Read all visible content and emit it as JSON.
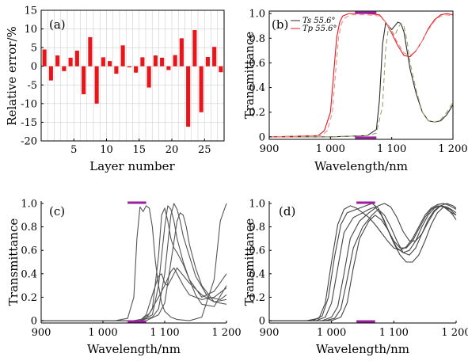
{
  "chart_data": [
    {
      "panel": "(a)",
      "type": "bar",
      "xlabel": "Layer number",
      "ylabel": "Relative error/%",
      "xlim": [
        0,
        28
      ],
      "ylim": [
        -20,
        15
      ],
      "xticks": [
        5,
        10,
        15,
        20,
        25
      ],
      "yticks": [
        -20,
        -15,
        -10,
        -5,
        0,
        5,
        10,
        15
      ],
      "grid": true,
      "bar_color": "#e8151b",
      "categories": [
        1,
        2,
        3,
        4,
        5,
        6,
        7,
        8,
        9,
        10,
        11,
        12,
        13,
        14,
        15,
        16,
        17,
        18,
        19,
        20,
        21,
        22,
        23,
        24,
        25,
        26,
        27,
        28
      ],
      "values": [
        4.5,
        -3.8,
        2.9,
        -1.3,
        2.3,
        4.2,
        -7.5,
        7.8,
        -10,
        2.4,
        1.4,
        -2.0,
        5.6,
        -0.3,
        -1.7,
        2.4,
        -5.7,
        2.9,
        2.3,
        -1.0,
        3.0,
        7.5,
        -16.2,
        9.7,
        -12.3,
        2.5,
        5.2,
        -1.6
      ]
    },
    {
      "panel": "(b)",
      "type": "line",
      "xlabel": "Wavelength/nm",
      "ylabel": "Transmittance",
      "xlim": [
        900,
        1200
      ],
      "ylim": [
        -0.02,
        1.02
      ],
      "xticks": [
        900,
        1000,
        1100,
        1200
      ],
      "xtick_labels": [
        "900",
        "1 000",
        "1 100",
        "1 200"
      ],
      "yticks": [
        0,
        0.2,
        0.4,
        0.6,
        0.8,
        1.0
      ],
      "ytick_labels": [
        "0",
        "0.2",
        "0.4",
        "0.6",
        "0.8",
        "1.0"
      ],
      "legend": [
        {
          "label": "Ts 55.6°",
          "color": "#2b2b2b"
        },
        {
          "label": "Tp 55.6°",
          "color": "#e8151b"
        }
      ],
      "band_color": "#9b1fa0",
      "band_top": [
        1040,
        1075
      ],
      "band_bottom": [
        1040,
        1075
      ],
      "series": [
        {
          "name": "Ts 55.6°",
          "color": "#2b2b2b",
          "dash": "",
          "x": [
            900,
            1000,
            1060,
            1075,
            1080,
            1085,
            1090,
            1095,
            1100,
            1105,
            1110,
            1115,
            1120,
            1125,
            1130,
            1140,
            1150,
            1160,
            1170,
            1180,
            1190,
            1200
          ],
          "y": [
            0.0,
            0.0,
            0.01,
            0.06,
            0.3,
            0.75,
            0.92,
            0.9,
            0.87,
            0.9,
            0.93,
            0.92,
            0.85,
            0.7,
            0.55,
            0.35,
            0.2,
            0.13,
            0.12,
            0.13,
            0.18,
            0.26
          ]
        },
        {
          "name": "Ts 55.6° (dashed)",
          "color": "#9ea068",
          "dash": "6,4",
          "x": [
            900,
            1000,
            1060,
            1075,
            1085,
            1090,
            1095,
            1100,
            1105,
            1110,
            1115,
            1120,
            1125,
            1130,
            1140,
            1150,
            1160,
            1170,
            1180,
            1190,
            1200
          ],
          "y": [
            0.0,
            0.0,
            0.01,
            0.03,
            0.25,
            0.7,
            0.9,
            0.86,
            0.82,
            0.88,
            0.92,
            0.9,
            0.78,
            0.6,
            0.38,
            0.2,
            0.13,
            0.12,
            0.14,
            0.2,
            0.28
          ]
        },
        {
          "name": "Tp 55.6°",
          "color": "#e8151b",
          "dash": "",
          "x": [
            900,
            980,
            990,
            1000,
            1005,
            1010,
            1015,
            1020,
            1030,
            1060,
            1080,
            1090,
            1100,
            1110,
            1120,
            1130,
            1140,
            1150,
            1160,
            1170,
            1180,
            1190,
            1200
          ],
          "y": [
            0.0,
            0.01,
            0.05,
            0.2,
            0.5,
            0.8,
            0.93,
            0.98,
            1.0,
            1.0,
            0.99,
            0.93,
            0.84,
            0.74,
            0.66,
            0.65,
            0.7,
            0.78,
            0.88,
            0.95,
            0.99,
            1.0,
            0.99
          ]
        },
        {
          "name": "Tp 55.6° (dashed)",
          "color": "#f08a8c",
          "dash": "6,4",
          "x": [
            900,
            985,
            995,
            1003,
            1008,
            1013,
            1018,
            1025,
            1035,
            1060,
            1080,
            1090,
            1100,
            1110,
            1120,
            1130,
            1140,
            1150,
            1160,
            1170,
            1180,
            1190,
            1200
          ],
          "y": [
            0.0,
            0.01,
            0.05,
            0.2,
            0.5,
            0.8,
            0.92,
            0.97,
            0.99,
            0.99,
            0.98,
            0.93,
            0.85,
            0.76,
            0.68,
            0.66,
            0.7,
            0.78,
            0.87,
            0.94,
            0.98,
            0.99,
            0.98
          ]
        }
      ]
    },
    {
      "panel": "(c)",
      "type": "line",
      "xlabel": "Wavelength/nm",
      "ylabel": "Transmittance",
      "xlim": [
        900,
        1200
      ],
      "ylim": [
        -0.02,
        1.02
      ],
      "xticks": [
        900,
        1000,
        1100,
        1200
      ],
      "xtick_labels": [
        "900",
        "1 000",
        "1 100",
        "1 200"
      ],
      "yticks": [
        0,
        0.2,
        0.4,
        0.6,
        0.8,
        1.0
      ],
      "ytick_labels": [
        "0",
        "0.2",
        "0.4",
        "0.6",
        "0.8",
        "1.0"
      ],
      "band_color": "#9b1fa0",
      "band_top": [
        1040,
        1070
      ],
      "band_bottom": [
        1040,
        1070
      ],
      "series": [
        {
          "color": "#555555",
          "x": [
            900,
            1020,
            1040,
            1050,
            1055,
            1060,
            1065,
            1070,
            1075,
            1080,
            1085,
            1090,
            1095,
            1100,
            1110,
            1120,
            1140,
            1160,
            1180,
            1190,
            1200
          ],
          "y": [
            0,
            0,
            0.02,
            0.2,
            0.7,
            0.97,
            0.93,
            0.98,
            0.96,
            0.8,
            0.5,
            0.3,
            0.15,
            0.08,
            0.03,
            0.01,
            0.0,
            0.03,
            0.35,
            0.85,
            1.0
          ]
        },
        {
          "color": "#555555",
          "x": [
            900,
            1050,
            1070,
            1080,
            1090,
            1095,
            1100,
            1105,
            1110,
            1115,
            1120,
            1130,
            1140,
            1150,
            1160,
            1180,
            1200
          ],
          "y": [
            0,
            0,
            0.02,
            0.1,
            0.55,
            0.9,
            0.96,
            0.85,
            0.7,
            0.62,
            0.58,
            0.48,
            0.35,
            0.22,
            0.14,
            0.12,
            0.3
          ]
        },
        {
          "color": "#555555",
          "x": [
            900,
            1060,
            1080,
            1090,
            1100,
            1105,
            1110,
            1115,
            1120,
            1130,
            1140,
            1160,
            1180,
            1200
          ],
          "y": [
            0,
            0,
            0.05,
            0.3,
            0.8,
            0.98,
            0.95,
            0.85,
            0.7,
            0.5,
            0.35,
            0.2,
            0.25,
            0.4
          ]
        },
        {
          "color": "#555555",
          "x": [
            900,
            1060,
            1080,
            1090,
            1100,
            1110,
            1115,
            1120,
            1125,
            1130,
            1140,
            1150,
            1170,
            1190,
            1200
          ],
          "y": [
            0,
            0,
            0.03,
            0.1,
            0.4,
            0.9,
            1.0,
            0.95,
            0.85,
            0.72,
            0.55,
            0.38,
            0.2,
            0.18,
            0.22
          ]
        },
        {
          "color": "#555555",
          "x": [
            900,
            1070,
            1090,
            1100,
            1110,
            1120,
            1125,
            1130,
            1135,
            1140,
            1150,
            1160,
            1180,
            1200
          ],
          "y": [
            0,
            0,
            0.05,
            0.15,
            0.5,
            0.85,
            0.92,
            0.9,
            0.8,
            0.65,
            0.45,
            0.3,
            0.16,
            0.14
          ]
        },
        {
          "color": "#555555",
          "x": [
            900,
            1060,
            1070,
            1080,
            1090,
            1095,
            1100,
            1105,
            1110,
            1120,
            1140,
            1160,
            1180,
            1200
          ],
          "y": [
            0,
            0,
            0.05,
            0.22,
            0.38,
            0.4,
            0.32,
            0.3,
            0.35,
            0.45,
            0.32,
            0.22,
            0.16,
            0.18
          ]
        },
        {
          "color": "#555555",
          "x": [
            900,
            1060,
            1075,
            1090,
            1100,
            1110,
            1115,
            1120,
            1130,
            1140,
            1160,
            1180,
            1200
          ],
          "y": [
            0,
            0,
            0.06,
            0.2,
            0.3,
            0.42,
            0.45,
            0.4,
            0.3,
            0.22,
            0.18,
            0.2,
            0.28
          ]
        }
      ]
    },
    {
      "panel": "(d)",
      "type": "line",
      "xlabel": "Wavelength/nm",
      "ylabel": "Transmittance",
      "xlim": [
        900,
        1200
      ],
      "ylim": [
        -0.02,
        1.02
      ],
      "xticks": [
        900,
        1000,
        1100,
        1200
      ],
      "xtick_labels": [
        "900",
        "1 000",
        "1 100",
        "1 200"
      ],
      "yticks": [
        0,
        0.2,
        0.4,
        0.6,
        0.8,
        1.0
      ],
      "ytick_labels": [
        "0",
        "0.2",
        "0.4",
        "0.6",
        "0.8",
        "1.0"
      ],
      "band_color": "#9b1fa0",
      "band_top": [
        1040,
        1070
      ],
      "band_bottom": [
        1040,
        1070
      ],
      "series": [
        {
          "color": "#444444",
          "x": [
            900,
            960,
            980,
            990,
            1000,
            1010,
            1020,
            1030,
            1040,
            1050,
            1060,
            1070,
            1080,
            1090,
            1100,
            1110,
            1120,
            1130,
            1140,
            1150,
            1160,
            1170,
            1180,
            1190,
            1200
          ],
          "y": [
            0,
            0,
            0.02,
            0.15,
            0.5,
            0.82,
            0.95,
            0.98,
            0.96,
            0.92,
            0.88,
            0.82,
            0.75,
            0.68,
            0.62,
            0.6,
            0.63,
            0.7,
            0.8,
            0.9,
            0.96,
            0.99,
            1.0,
            0.98,
            0.95
          ]
        },
        {
          "color": "#444444",
          "x": [
            900,
            970,
            985,
            995,
            1005,
            1015,
            1025,
            1040,
            1055,
            1065,
            1075,
            1085,
            1095,
            1105,
            1115,
            1125,
            1135,
            1145,
            1155,
            1165,
            1175,
            1185,
            1195,
            1200
          ],
          "y": [
            0,
            0,
            0.04,
            0.2,
            0.55,
            0.82,
            0.92,
            0.95,
            0.98,
            1.0,
            0.96,
            0.85,
            0.72,
            0.62,
            0.58,
            0.6,
            0.68,
            0.8,
            0.9,
            0.96,
            0.98,
            0.96,
            0.9,
            0.86
          ]
        },
        {
          "color": "#444444",
          "x": [
            900,
            975,
            990,
            1000,
            1010,
            1020,
            1035,
            1050,
            1060,
            1070,
            1080,
            1090,
            1100,
            1110,
            1120,
            1130,
            1140,
            1150,
            1160,
            1170,
            1180,
            1190,
            1200
          ],
          "y": [
            0,
            0,
            0.03,
            0.15,
            0.45,
            0.75,
            0.88,
            0.92,
            0.95,
            0.97,
            0.9,
            0.78,
            0.66,
            0.56,
            0.5,
            0.5,
            0.56,
            0.68,
            0.82,
            0.92,
            0.97,
            0.95,
            0.9
          ]
        },
        {
          "color": "#444444",
          "x": [
            900,
            985,
            1000,
            1010,
            1020,
            1030,
            1045,
            1060,
            1075,
            1085,
            1095,
            1105,
            1115,
            1125,
            1135,
            1145,
            1155,
            1165,
            1175,
            1185,
            1195,
            1200
          ],
          "y": [
            0,
            0,
            0.03,
            0.12,
            0.4,
            0.7,
            0.85,
            0.92,
            0.98,
            1.0,
            0.97,
            0.88,
            0.76,
            0.68,
            0.68,
            0.74,
            0.84,
            0.93,
            0.98,
            1.0,
            0.98,
            0.96
          ]
        },
        {
          "color": "#444444",
          "x": [
            900,
            990,
            1005,
            1015,
            1025,
            1035,
            1050,
            1065,
            1075,
            1085,
            1095,
            1105,
            1115,
            1125,
            1135,
            1145,
            1155,
            1165,
            1175,
            1185,
            1195,
            1200
          ],
          "y": [
            0,
            0,
            0.02,
            0.1,
            0.35,
            0.62,
            0.8,
            0.9,
            0.95,
            0.9,
            0.8,
            0.68,
            0.58,
            0.56,
            0.62,
            0.74,
            0.86,
            0.94,
            0.98,
            0.97,
            0.94,
            0.92
          ]
        },
        {
          "color": "#444444",
          "x": [
            900,
            1000,
            1015,
            1025,
            1035,
            1045,
            1060,
            1070,
            1080,
            1090,
            1100,
            1110,
            1120,
            1130,
            1140,
            1150,
            1160,
            1170,
            1180,
            1190,
            1200
          ],
          "y": [
            0,
            0,
            0.03,
            0.15,
            0.45,
            0.7,
            0.85,
            0.9,
            0.86,
            0.78,
            0.68,
            0.62,
            0.62,
            0.68,
            0.78,
            0.88,
            0.95,
            0.98,
            0.97,
            0.93,
            0.9
          ]
        }
      ]
    }
  ]
}
